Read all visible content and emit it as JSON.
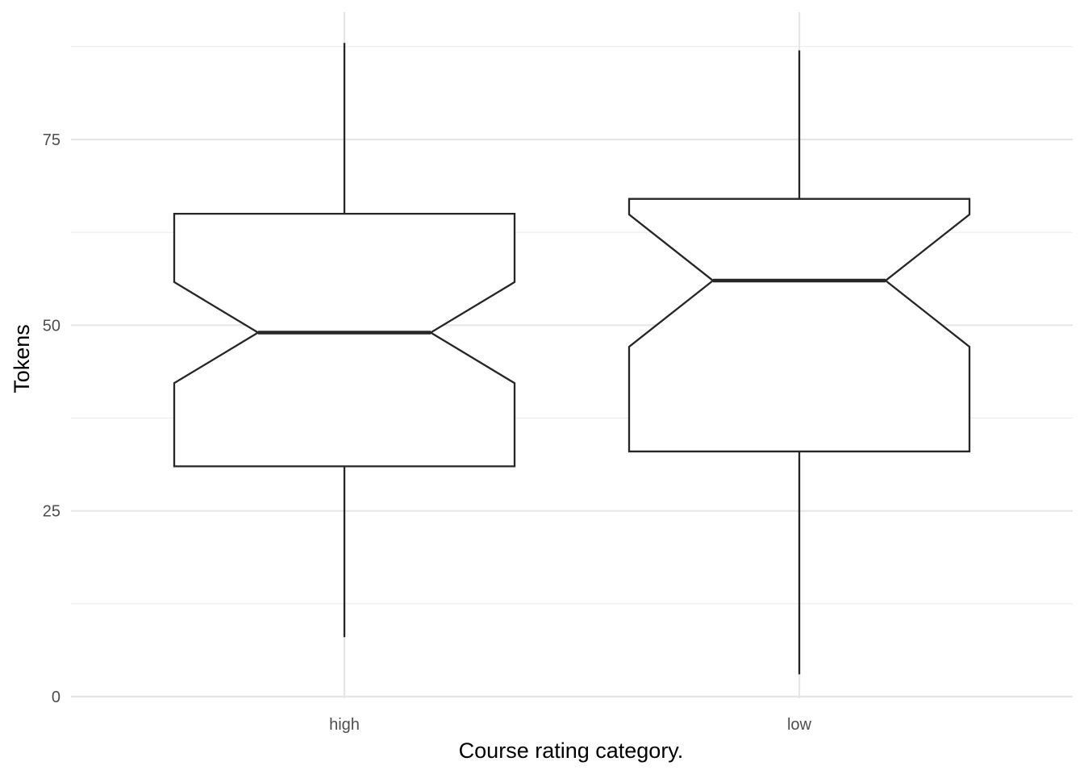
{
  "chart_data": {
    "type": "boxplot",
    "notched": true,
    "title": "",
    "xlabel": "Course rating category.",
    "ylabel": "Tokens",
    "categories": [
      "high",
      "low"
    ],
    "boxes": [
      {
        "category": "high",
        "min": 8,
        "q1": 31,
        "median": 49,
        "q3": 65,
        "max": 88,
        "notch_low": 42.2,
        "notch_high": 55.8
      },
      {
        "category": "low",
        "min": 3,
        "q1": 33,
        "median": 56,
        "q3": 67,
        "max": 87,
        "notch_low": 47.1,
        "notch_high": 64.9
      }
    ],
    "ylim": [
      0,
      90
    ],
    "yticks": [
      0,
      25,
      50,
      75
    ],
    "ytick_labels": [
      "0",
      "25",
      "50",
      "75"
    ],
    "grid": true,
    "legend": "none"
  }
}
